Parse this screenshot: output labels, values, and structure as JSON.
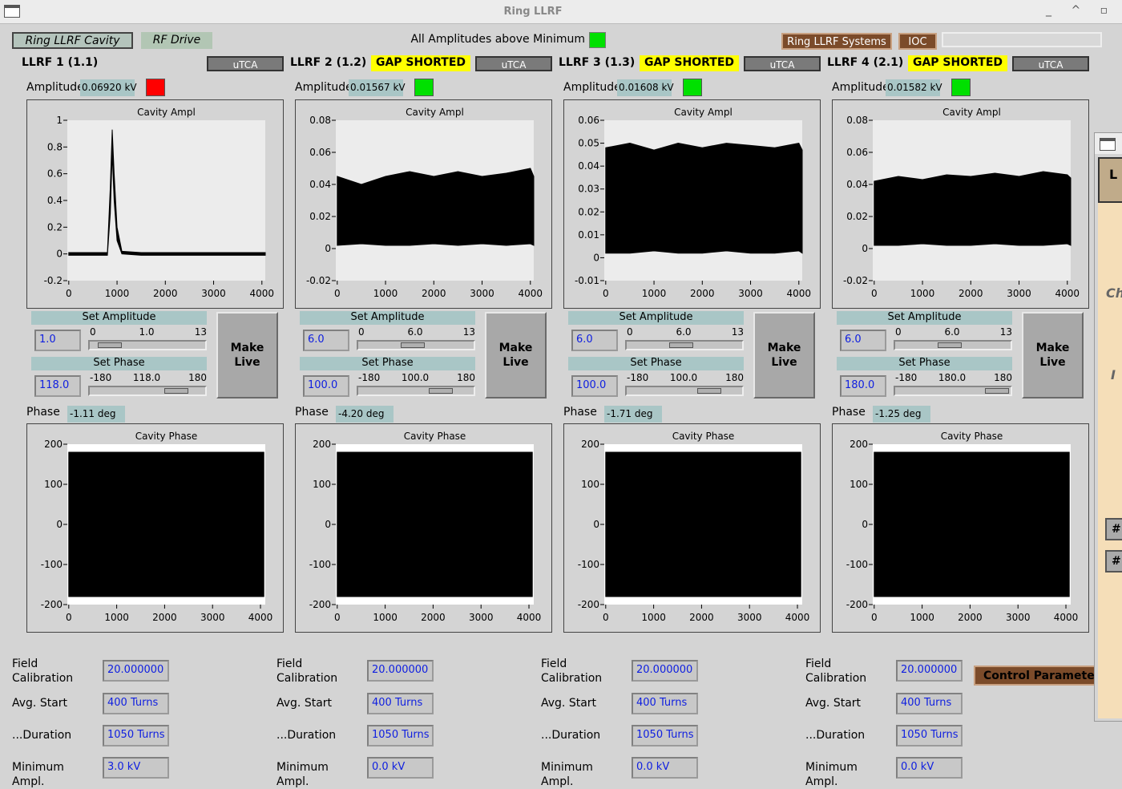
{
  "window_title": "Ring LLRF",
  "tabs": [
    "Ring LLRF Cavity",
    "RF Drive"
  ],
  "status": {
    "label": "All Amplitudes above Minimum",
    "color": "#00e000"
  },
  "top_buttons": [
    "Ring LLRF Systems",
    "IOC"
  ],
  "cavities": [
    {
      "name": "LLRF 1 (1.1)",
      "mode": "uTCA",
      "amplitude_label": "Amplitude",
      "amplitude": "0.06920 kV",
      "indicator": "#ff0000",
      "ampl_chart": {
        "type": "line",
        "title": "Cavity Ampl",
        "x": [
          0,
          500,
          800,
          860,
          900,
          940,
          1000,
          1100,
          1500,
          2000,
          2500,
          3000,
          3500,
          4000,
          4070
        ],
        "xlim": [
          -30,
          4070
        ],
        "ylim": [
          -0.2,
          1
        ],
        "xticks": [
          0,
          1000,
          2000,
          3000,
          4000
        ],
        "yticks": [
          -0.2,
          0,
          0.2,
          0.4,
          0.6,
          0.8,
          1
        ],
        "series": [
          {
            "color": "#000000",
            "values": [
              0.01,
              0.01,
              0.01,
              0.5,
              0.93,
              0.6,
              0.2,
              0.02,
              0.01,
              0.01,
              0.01,
              0.01,
              0.01,
              0.01,
              0.01
            ]
          },
          {
            "color": "#000000",
            "values": [
              -0.01,
              -0.01,
              -0.01,
              0.3,
              0.75,
              0.4,
              0.1,
              0,
              -0.01,
              -0.01,
              -0.01,
              -0.01,
              -0.01,
              -0.01,
              -0.01
            ]
          }
        ]
      },
      "set_amplitude": {
        "label": "Set Amplitude",
        "entry": "1.0",
        "min": "0",
        "value": "1.0",
        "max": "13"
      },
      "set_phase": {
        "label": "Set Phase",
        "entry": "118.0",
        "min": "-180",
        "value": "118.0",
        "max": "180"
      },
      "make_live": "Make Live",
      "phase_label": "Phase",
      "phase": "-1.11 deg",
      "phase_chart": {
        "type": "line",
        "title": "Cavity Phase",
        "x": [
          0,
          1000,
          2000,
          3000,
          4070
        ],
        "xlim": [
          -30,
          4100
        ],
        "ylim": [
          -200,
          200
        ],
        "xticks": [
          0,
          1000,
          2000,
          3000,
          4000
        ],
        "yticks": [
          -200,
          -100,
          0,
          100,
          200
        ],
        "series": [
          {
            "color": "#000000",
            "values": [
              180,
              180,
              180,
              180,
              180
            ]
          },
          {
            "color": "#000000",
            "values": [
              -180,
              -180,
              -180,
              -180,
              -180
            ]
          }
        ]
      },
      "params": [
        {
          "label": "Field Calibration",
          "value": "20.000000"
        },
        {
          "label": "Avg. Start",
          "value": "400 Turns"
        },
        {
          "label": "...Duration",
          "value": "1050 Turns"
        },
        {
          "label": "Minimum Ampl.",
          "value": "3.0 kV"
        }
      ]
    },
    {
      "name": "LLRF 2 (1.2)",
      "badge": "GAP SHORTED",
      "mode": "uTCA",
      "amplitude_label": "Amplitude",
      "amplitude": "0.01567 kV",
      "indicator": "#00e000",
      "ampl_chart": {
        "type": "line",
        "title": "Cavity Ampl",
        "x": [
          0,
          500,
          1000,
          1500,
          2000,
          2500,
          3000,
          3500,
          4000,
          4070
        ],
        "xlim": [
          -30,
          4070
        ],
        "ylim": [
          -0.02,
          0.08
        ],
        "xticks": [
          0,
          1000,
          2000,
          3000,
          4000
        ],
        "yticks": [
          -0.02,
          0,
          0.02,
          0.04,
          0.06,
          0.08
        ],
        "series": [
          {
            "color": "#000000",
            "values": [
              0.045,
              0.04,
              0.045,
              0.048,
              0.045,
              0.048,
              0.045,
              0.047,
              0.05,
              0.045
            ]
          },
          {
            "color": "#000000",
            "values": [
              0.002,
              0.003,
              0.002,
              0.002,
              0.003,
              0.002,
              0.003,
              0.002,
              0.003,
              0.002
            ]
          }
        ]
      },
      "set_amplitude": {
        "label": "Set Amplitude",
        "entry": "6.0",
        "min": "0",
        "value": "6.0",
        "max": "13"
      },
      "set_phase": {
        "label": "Set Phase",
        "entry": "100.0",
        "min": "-180",
        "value": "100.0",
        "max": "180"
      },
      "make_live": "Make Live",
      "phase_label": "Phase",
      "phase": "-4.20 deg",
      "phase_chart": {
        "type": "line",
        "title": "Cavity Phase",
        "x": [
          0,
          1000,
          2000,
          3000,
          4070
        ],
        "xlim": [
          -30,
          4100
        ],
        "ylim": [
          -200,
          200
        ],
        "xticks": [
          0,
          1000,
          2000,
          3000,
          4000
        ],
        "yticks": [
          -200,
          -100,
          0,
          100,
          200
        ],
        "series": [
          {
            "color": "#000000",
            "values": [
              180,
              180,
              180,
              180,
              180
            ]
          },
          {
            "color": "#000000",
            "values": [
              -180,
              -180,
              -180,
              -180,
              -180
            ]
          }
        ]
      },
      "params": [
        {
          "label": "Field Calibration",
          "value": "20.000000"
        },
        {
          "label": "Avg. Start",
          "value": "400 Turns"
        },
        {
          "label": "...Duration",
          "value": "1050 Turns"
        },
        {
          "label": "Minimum Ampl.",
          "value": "0.0 kV"
        }
      ]
    },
    {
      "name": "LLRF 3 (1.3)",
      "badge": "GAP SHORTED",
      "mode": "uTCA",
      "amplitude_label": "Amplitude",
      "amplitude": "0.01608 kV",
      "indicator": "#00e000",
      "ampl_chart": {
        "type": "line",
        "title": "Cavity Ampl",
        "x": [
          0,
          500,
          1000,
          1500,
          2000,
          2500,
          3000,
          3500,
          4000,
          4070
        ],
        "xlim": [
          -30,
          4070
        ],
        "ylim": [
          -0.01,
          0.06
        ],
        "xticks": [
          0,
          1000,
          2000,
          3000,
          4000
        ],
        "yticks": [
          -0.01,
          0,
          0.01,
          0.02,
          0.03,
          0.04,
          0.05,
          0.06
        ],
        "series": [
          {
            "color": "#000000",
            "values": [
              0.048,
              0.05,
              0.047,
              0.05,
              0.048,
              0.05,
              0.049,
              0.048,
              0.05,
              0.047
            ]
          },
          {
            "color": "#000000",
            "values": [
              0.002,
              0.002,
              0.003,
              0.002,
              0.002,
              0.003,
              0.002,
              0.002,
              0.003,
              0.002
            ]
          }
        ]
      },
      "set_amplitude": {
        "label": "Set Amplitude",
        "entry": "6.0",
        "min": "0",
        "value": "6.0",
        "max": "13"
      },
      "set_phase": {
        "label": "Set Phase",
        "entry": "100.0",
        "min": "-180",
        "value": "100.0",
        "max": "180"
      },
      "make_live": "Make Live",
      "phase_label": "Phase",
      "phase": "-1.71 deg",
      "phase_chart": {
        "type": "line",
        "title": "Cavity Phase",
        "x": [
          0,
          1000,
          2000,
          3000,
          4070
        ],
        "xlim": [
          -30,
          4100
        ],
        "ylim": [
          -200,
          200
        ],
        "xticks": [
          0,
          1000,
          2000,
          3000,
          4000
        ],
        "yticks": [
          -200,
          -100,
          0,
          100,
          200
        ],
        "series": [
          {
            "color": "#000000",
            "values": [
              180,
              180,
              180,
              180,
              180
            ]
          },
          {
            "color": "#000000",
            "values": [
              -180,
              -180,
              -180,
              -180,
              -180
            ]
          }
        ]
      },
      "params": [
        {
          "label": "Field Calibration",
          "value": "20.000000"
        },
        {
          "label": "Avg. Start",
          "value": "400 Turns"
        },
        {
          "label": "...Duration",
          "value": "1050 Turns"
        },
        {
          "label": "Minimum Ampl.",
          "value": "0.0 kV"
        }
      ]
    },
    {
      "name": "LLRF 4 (2.1)",
      "badge": "GAP SHORTED",
      "mode": "uTCA",
      "amplitude_label": "Amplitude",
      "amplitude": "0.01582 kV",
      "indicator": "#00e000",
      "ampl_chart": {
        "type": "line",
        "title": "Cavity Ampl",
        "x": [
          0,
          500,
          1000,
          1500,
          2000,
          2500,
          3000,
          3500,
          4000,
          4070
        ],
        "xlim": [
          -30,
          4070
        ],
        "ylim": [
          -0.02,
          0.08
        ],
        "xticks": [
          0,
          1000,
          2000,
          3000,
          4000
        ],
        "yticks": [
          -0.02,
          0,
          0.02,
          0.04,
          0.06,
          0.08
        ],
        "series": [
          {
            "color": "#000000",
            "values": [
              0.042,
              0.045,
              0.043,
              0.046,
              0.045,
              0.047,
              0.045,
              0.048,
              0.046,
              0.044
            ]
          },
          {
            "color": "#000000",
            "values": [
              0.002,
              0.002,
              0.003,
              0.002,
              0.002,
              0.003,
              0.002,
              0.002,
              0.003,
              0.002
            ]
          }
        ]
      },
      "set_amplitude": {
        "label": "Set Amplitude",
        "entry": "6.0",
        "min": "0",
        "value": "6.0",
        "max": "13"
      },
      "set_phase": {
        "label": "Set Phase",
        "entry": "180.0",
        "min": "-180",
        "value": "180.0",
        "max": "180"
      },
      "make_live": "Make Live",
      "phase_label": "Phase",
      "phase": "-1.25 deg",
      "phase_chart": {
        "type": "line",
        "title": "Cavity Phase",
        "x": [
          0,
          1000,
          2000,
          3000,
          4070
        ],
        "xlim": [
          -30,
          4100
        ],
        "ylim": [
          -200,
          200
        ],
        "xticks": [
          0,
          1000,
          2000,
          3000,
          4000
        ],
        "yticks": [
          -200,
          -100,
          0,
          100,
          200
        ],
        "series": [
          {
            "color": "#000000",
            "values": [
              180,
              180,
              180,
              180,
              180
            ]
          },
          {
            "color": "#000000",
            "values": [
              -180,
              -180,
              -180,
              -180,
              -180
            ]
          }
        ]
      },
      "params": [
        {
          "label": "Field Calibration",
          "value": "20.000000"
        },
        {
          "label": "Avg. Start",
          "value": "400 Turns"
        },
        {
          "label": "...Duration",
          "value": "1050 Turns"
        },
        {
          "label": "Minimum Ampl.",
          "value": "0.0 kV"
        }
      ]
    }
  ],
  "control_button": "Control Parameters",
  "side_window": {
    "texts": [
      "L",
      "Ch",
      "I",
      "# C",
      "# C"
    ]
  }
}
